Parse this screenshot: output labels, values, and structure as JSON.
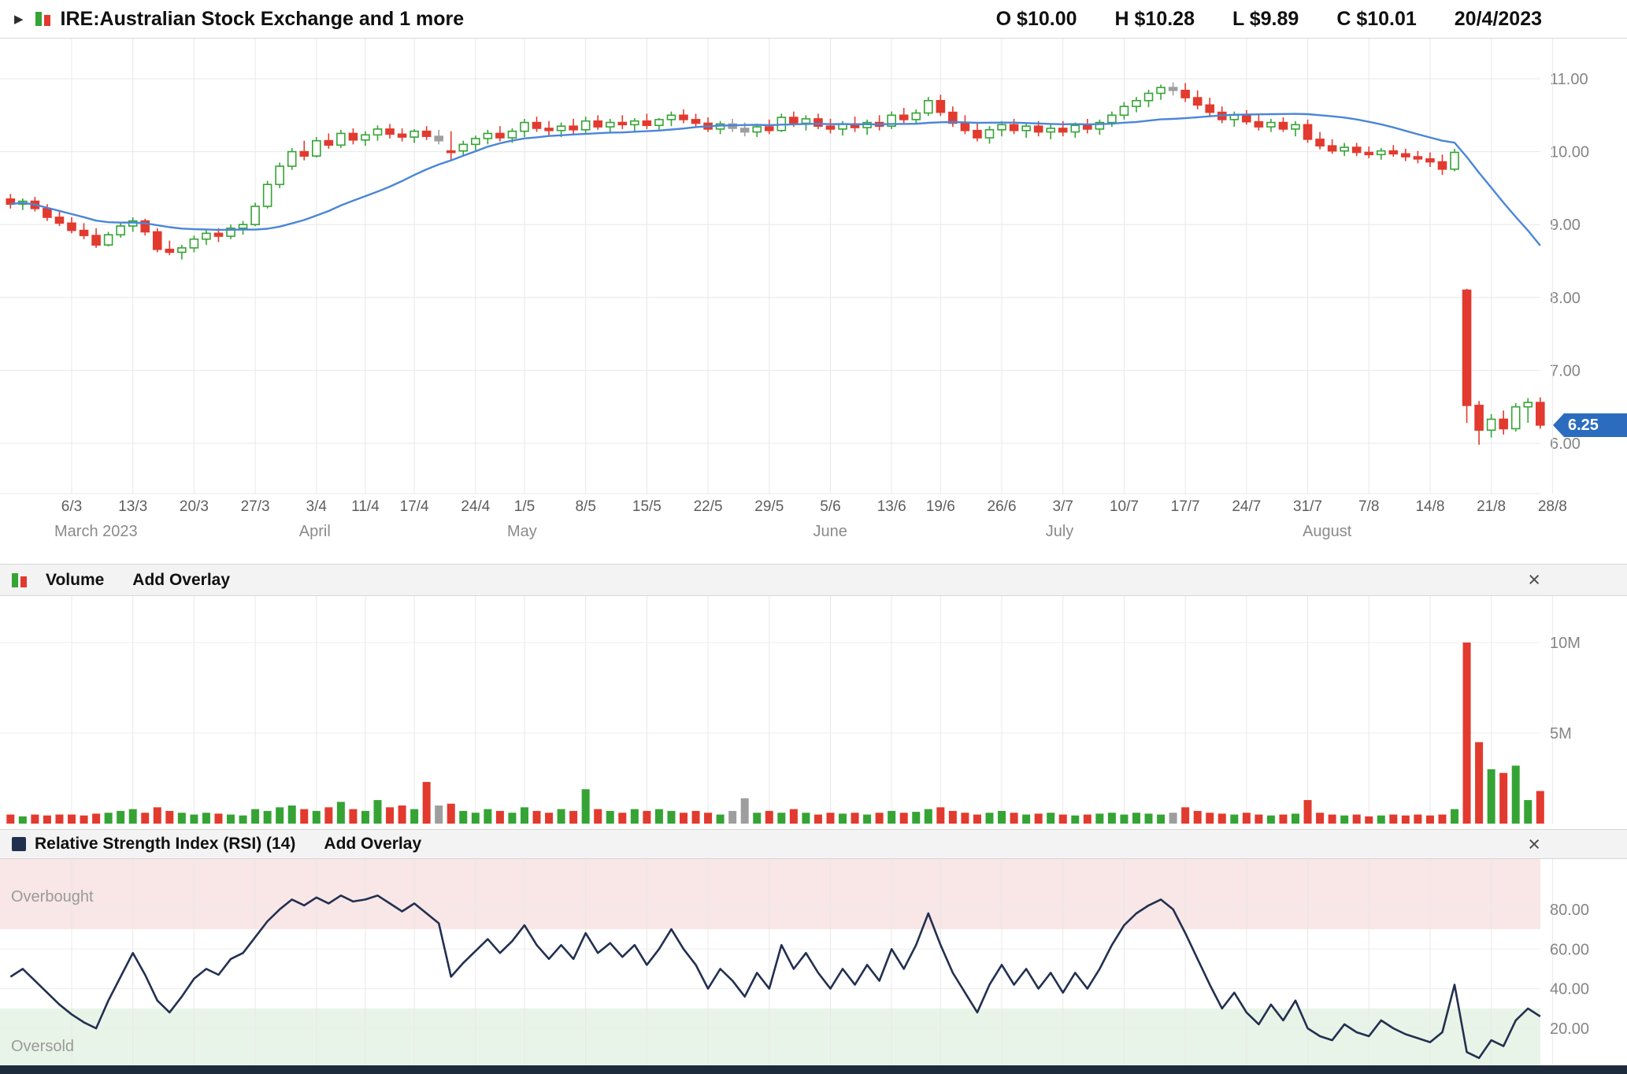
{
  "header": {
    "expand_icon": "▶",
    "title": "IRE:Australian Stock Exchange and 1 more",
    "ohlc": {
      "open": "O $10.00",
      "high": "H $10.28",
      "low": "L $9.89",
      "close": "C $10.01",
      "date": "20/4/2023"
    },
    "last_price_tag": "6.25"
  },
  "volume_panel": {
    "title": "Volume",
    "add_overlay": "Add Overlay",
    "close": "×"
  },
  "rsi_panel": {
    "title": "Relative Strength Index (RSI) (14)",
    "add_overlay": "Add Overlay",
    "close": "×",
    "overbought": "Overbought",
    "oversold": "Oversold"
  },
  "colors": {
    "up": "#35a435",
    "down": "#e23a2e",
    "neutral": "#9e9e9e",
    "ma_line": "#4a86d8",
    "rsi_line": "#223050",
    "tag": "#2b6cbf",
    "overbought_bg": "#f9e6e6",
    "oversold_bg": "#e8f4e7",
    "bottom_bar": "#1e2b3c"
  },
  "chart_data": {
    "type": "candlestick",
    "title": "IRE:Australian Stock Exchange and 1 more",
    "readout": {
      "open": 10.0,
      "high": 10.28,
      "low": 9.89,
      "close": 10.01,
      "date": "20/4/2023"
    },
    "last_price": 6.25,
    "moving_average": {
      "type": "sma",
      "window": 20
    },
    "price_axis": {
      "ticks": [
        11,
        10,
        9,
        8,
        7,
        6
      ],
      "labels": [
        "11.00",
        "10.00",
        "9.00",
        "8.00",
        "7.00",
        "6.00"
      ],
      "ylim": [
        5.3,
        11.4
      ]
    },
    "volume_axis": {
      "ticks": [
        10,
        5
      ],
      "labels": [
        "10M",
        "5M"
      ],
      "unit": "millions",
      "ylim": [
        0,
        12.5
      ]
    },
    "rsi_axis": {
      "ticks": [
        80,
        60,
        40,
        20
      ],
      "labels": [
        "80.00",
        "60.00",
        "40.00",
        "20.00"
      ],
      "overbought_level": 70,
      "oversold_level": 30,
      "ylim": [
        0,
        105
      ]
    },
    "x_ticks": [
      [
        "6/3",
        5
      ],
      [
        "13/3",
        10
      ],
      [
        "20/3",
        15
      ],
      [
        "27/3",
        20
      ],
      [
        "3/4",
        25
      ],
      [
        "11/4",
        29
      ],
      [
        "17/4",
        33
      ],
      [
        "24/4",
        38
      ],
      [
        "1/5",
        42
      ],
      [
        "8/5",
        47
      ],
      [
        "15/5",
        52
      ],
      [
        "22/5",
        57
      ],
      [
        "29/5",
        62
      ],
      [
        "5/6",
        67
      ],
      [
        "13/6",
        72
      ],
      [
        "19/6",
        76
      ],
      [
        "26/6",
        81
      ],
      [
        "3/7",
        86
      ],
      [
        "10/7",
        91
      ],
      [
        "17/7",
        96
      ],
      [
        "24/7",
        101
      ],
      [
        "31/7",
        106
      ],
      [
        "7/8",
        111
      ],
      [
        "14/8",
        116
      ],
      [
        "21/8",
        121
      ],
      [
        "28/8",
        126
      ]
    ],
    "months": [
      [
        "March 2023",
        5
      ],
      [
        "April",
        25
      ],
      [
        "May",
        42
      ],
      [
        "June",
        67
      ],
      [
        "July",
        86
      ],
      [
        "August",
        107
      ]
    ],
    "ohlc_columns": [
      "date",
      "open",
      "high",
      "low",
      "close",
      "direction",
      "volume_millions",
      "rsi14"
    ],
    "ohlc": [
      [
        "27/2",
        9.35,
        9.42,
        9.22,
        9.28,
        -1,
        0.5,
        46
      ],
      [
        "28/2",
        9.28,
        9.36,
        9.2,
        9.32,
        1,
        0.4,
        50
      ],
      [
        "1/3",
        9.32,
        9.38,
        9.18,
        9.22,
        -1,
        0.5,
        44
      ],
      [
        "2/3",
        9.22,
        9.28,
        9.05,
        9.1,
        -1,
        0.45,
        38
      ],
      [
        "3/3",
        9.1,
        9.18,
        8.98,
        9.02,
        -1,
        0.5,
        32
      ],
      [
        "6/3",
        9.02,
        9.1,
        8.88,
        8.92,
        -1,
        0.5,
        27
      ],
      [
        "7/3",
        8.92,
        9.02,
        8.8,
        8.85,
        -1,
        0.45,
        23
      ],
      [
        "8/3",
        8.85,
        8.95,
        8.68,
        8.72,
        -1,
        0.55,
        20
      ],
      [
        "9/3",
        8.72,
        8.9,
        8.7,
        8.86,
        1,
        0.6,
        34
      ],
      [
        "10/3",
        8.86,
        9.02,
        8.82,
        8.98,
        1,
        0.7,
        46
      ],
      [
        "13/3",
        8.98,
        9.1,
        8.9,
        9.05,
        1,
        0.8,
        58
      ],
      [
        "14/3",
        9.05,
        9.08,
        8.85,
        8.9,
        -1,
        0.6,
        47
      ],
      [
        "15/3",
        8.9,
        8.95,
        8.62,
        8.66,
        -1,
        0.9,
        34
      ],
      [
        "16/3",
        8.66,
        8.78,
        8.58,
        8.62,
        -1,
        0.7,
        28
      ],
      [
        "17/3",
        8.62,
        8.72,
        8.52,
        8.68,
        1,
        0.6,
        36
      ],
      [
        "20/3",
        8.68,
        8.85,
        8.62,
        8.8,
        1,
        0.5,
        45
      ],
      [
        "21/3",
        8.8,
        8.92,
        8.72,
        8.88,
        1,
        0.6,
        50
      ],
      [
        "22/3",
        8.88,
        8.95,
        8.76,
        8.84,
        -1,
        0.55,
        47
      ],
      [
        "23/3",
        8.84,
        9.0,
        8.8,
        8.95,
        1,
        0.5,
        55
      ],
      [
        "24/3",
        8.95,
        9.05,
        8.86,
        9.0,
        1,
        0.45,
        58
      ],
      [
        "27/3",
        9.0,
        9.3,
        8.98,
        9.25,
        1,
        0.8,
        66
      ],
      [
        "28/3",
        9.25,
        9.6,
        9.22,
        9.55,
        1,
        0.7,
        74
      ],
      [
        "29/3",
        9.55,
        9.85,
        9.5,
        9.8,
        1,
        0.9,
        80
      ],
      [
        "30/3",
        9.8,
        10.05,
        9.75,
        10.0,
        1,
        1.0,
        85
      ],
      [
        "31/3",
        10.0,
        10.15,
        9.88,
        9.94,
        -1,
        0.8,
        82
      ],
      [
        "3/4",
        9.94,
        10.2,
        9.92,
        10.15,
        1,
        0.7,
        86
      ],
      [
        "4/4",
        10.15,
        10.25,
        10.04,
        10.09,
        -1,
        0.9,
        83
      ],
      [
        "5/4",
        10.09,
        10.3,
        10.05,
        10.25,
        1,
        1.2,
        87
      ],
      [
        "6/4",
        10.25,
        10.32,
        10.1,
        10.16,
        -1,
        0.8,
        84
      ],
      [
        "11/4",
        10.16,
        10.28,
        10.08,
        10.23,
        1,
        0.7,
        85
      ],
      [
        "12/4",
        10.23,
        10.36,
        10.15,
        10.31,
        1,
        1.3,
        87
      ],
      [
        "13/4",
        10.31,
        10.38,
        10.18,
        10.24,
        -1,
        0.9,
        83
      ],
      [
        "14/4",
        10.24,
        10.32,
        10.14,
        10.2,
        -1,
        1.0,
        79
      ],
      [
        "17/4",
        10.2,
        10.31,
        10.12,
        10.28,
        1,
        0.8,
        83
      ],
      [
        "18/4",
        10.28,
        10.35,
        10.16,
        10.21,
        -1,
        2.3,
        78
      ],
      [
        "19/4",
        10.21,
        10.3,
        10.1,
        10.15,
        0,
        1.0,
        73
      ],
      [
        "20/4",
        10.0,
        10.28,
        9.89,
        10.01,
        -1,
        1.1,
        46
      ],
      [
        "21/4",
        10.01,
        10.15,
        9.95,
        10.1,
        1,
        0.7,
        53
      ],
      [
        "24/4",
        10.1,
        10.22,
        10.02,
        10.18,
        1,
        0.6,
        59
      ],
      [
        "26/4",
        10.18,
        10.3,
        10.1,
        10.25,
        1,
        0.8,
        65
      ],
      [
        "27/4",
        10.25,
        10.35,
        10.14,
        10.19,
        -1,
        0.7,
        58
      ],
      [
        "28/4",
        10.19,
        10.32,
        10.12,
        10.28,
        1,
        0.6,
        64
      ],
      [
        "1/5",
        10.28,
        10.45,
        10.2,
        10.4,
        1,
        0.9,
        72
      ],
      [
        "2/5",
        10.4,
        10.48,
        10.27,
        10.32,
        -1,
        0.7,
        62
      ],
      [
        "3/5",
        10.32,
        10.42,
        10.22,
        10.29,
        -1,
        0.6,
        55
      ],
      [
        "4/5",
        10.29,
        10.4,
        10.2,
        10.35,
        1,
        0.8,
        62
      ],
      [
        "5/5",
        10.35,
        10.45,
        10.24,
        10.3,
        -1,
        0.7,
        55
      ],
      [
        "8/5",
        10.3,
        10.48,
        10.25,
        10.42,
        1,
        1.9,
        68
      ],
      [
        "9/5",
        10.42,
        10.5,
        10.3,
        10.34,
        -1,
        0.8,
        58
      ],
      [
        "10/5",
        10.34,
        10.45,
        10.27,
        10.4,
        1,
        0.7,
        63
      ],
      [
        "11/5",
        10.4,
        10.5,
        10.31,
        10.37,
        -1,
        0.6,
        56
      ],
      [
        "12/5",
        10.37,
        10.46,
        10.28,
        10.42,
        1,
        0.8,
        62
      ],
      [
        "15/5",
        10.42,
        10.52,
        10.31,
        10.36,
        -1,
        0.7,
        52
      ],
      [
        "16/5",
        10.36,
        10.46,
        10.28,
        10.44,
        1,
        0.8,
        60
      ],
      [
        "17/5",
        10.44,
        10.55,
        10.35,
        10.5,
        1,
        0.7,
        70
      ],
      [
        "18/5",
        10.5,
        10.58,
        10.39,
        10.44,
        -1,
        0.6,
        60
      ],
      [
        "19/5",
        10.44,
        10.52,
        10.34,
        10.39,
        -1,
        0.7,
        52
      ],
      [
        "22/5",
        10.39,
        10.47,
        10.27,
        10.31,
        -1,
        0.6,
        40
      ],
      [
        "23/5",
        10.31,
        10.42,
        10.24,
        10.38,
        1,
        0.5,
        50
      ],
      [
        "24/5",
        10.38,
        10.45,
        10.27,
        10.32,
        0,
        0.7,
        44
      ],
      [
        "25/5",
        10.32,
        10.4,
        10.21,
        10.27,
        0,
        1.4,
        36
      ],
      [
        "26/5",
        10.27,
        10.38,
        10.2,
        10.34,
        1,
        0.6,
        48
      ],
      [
        "29/5",
        10.34,
        10.44,
        10.24,
        10.29,
        -1,
        0.7,
        40
      ],
      [
        "30/5",
        10.29,
        10.52,
        10.27,
        10.47,
        1,
        0.6,
        62
      ],
      [
        "31/5",
        10.47,
        10.55,
        10.34,
        10.39,
        -1,
        0.8,
        50
      ],
      [
        "1/6",
        10.39,
        10.5,
        10.29,
        10.45,
        1,
        0.6,
        58
      ],
      [
        "2/6",
        10.45,
        10.52,
        10.31,
        10.35,
        -1,
        0.5,
        48
      ],
      [
        "5/6",
        10.35,
        10.45,
        10.25,
        10.31,
        -1,
        0.6,
        40
      ],
      [
        "6/6",
        10.31,
        10.42,
        10.22,
        10.38,
        1,
        0.55,
        50
      ],
      [
        "7/6",
        10.38,
        10.48,
        10.27,
        10.33,
        -1,
        0.6,
        42
      ],
      [
        "8/6",
        10.33,
        10.44,
        10.23,
        10.4,
        1,
        0.5,
        52
      ],
      [
        "9/6",
        10.4,
        10.5,
        10.29,
        10.35,
        -1,
        0.6,
        44
      ],
      [
        "13/6",
        10.35,
        10.55,
        10.31,
        10.5,
        1,
        0.7,
        60
      ],
      [
        "14/6",
        10.5,
        10.6,
        10.39,
        10.44,
        -1,
        0.6,
        50
      ],
      [
        "15/6",
        10.44,
        10.58,
        10.37,
        10.53,
        1,
        0.65,
        62
      ],
      [
        "16/6",
        10.53,
        10.75,
        10.49,
        10.7,
        1,
        0.8,
        78
      ],
      [
        "19/6",
        10.7,
        10.78,
        10.49,
        10.54,
        -1,
        0.9,
        62
      ],
      [
        "20/6",
        10.54,
        10.62,
        10.34,
        10.39,
        -1,
        0.7,
        48
      ],
      [
        "21/6",
        10.39,
        10.5,
        10.24,
        10.29,
        -1,
        0.6,
        38
      ],
      [
        "22/6",
        10.29,
        10.4,
        10.14,
        10.19,
        -1,
        0.5,
        28
      ],
      [
        "23/6",
        10.19,
        10.35,
        10.11,
        10.3,
        1,
        0.6,
        42
      ],
      [
        "26/6",
        10.3,
        10.42,
        10.21,
        10.37,
        1,
        0.7,
        52
      ],
      [
        "27/6",
        10.37,
        10.45,
        10.24,
        10.29,
        -1,
        0.6,
        42
      ],
      [
        "28/6",
        10.29,
        10.4,
        10.19,
        10.35,
        1,
        0.5,
        50
      ],
      [
        "29/6",
        10.35,
        10.42,
        10.21,
        10.27,
        -1,
        0.55,
        40
      ],
      [
        "30/6",
        10.27,
        10.38,
        10.17,
        10.32,
        1,
        0.6,
        48
      ],
      [
        "3/7",
        10.32,
        10.42,
        10.21,
        10.27,
        -1,
        0.5,
        38
      ],
      [
        "4/7",
        10.27,
        10.4,
        10.19,
        10.36,
        1,
        0.45,
        48
      ],
      [
        "5/7",
        10.36,
        10.45,
        10.25,
        10.31,
        -1,
        0.5,
        40
      ],
      [
        "6/7",
        10.31,
        10.44,
        10.23,
        10.4,
        1,
        0.55,
        50
      ],
      [
        "7/7",
        10.4,
        10.55,
        10.34,
        10.5,
        1,
        0.6,
        62
      ],
      [
        "10/7",
        10.5,
        10.68,
        10.44,
        10.62,
        1,
        0.5,
        72
      ],
      [
        "11/7",
        10.62,
        10.75,
        10.54,
        10.7,
        1,
        0.6,
        78
      ],
      [
        "12/7",
        10.7,
        10.85,
        10.61,
        10.8,
        1,
        0.55,
        82
      ],
      [
        "13/7",
        10.8,
        10.92,
        10.71,
        10.88,
        1,
        0.5,
        85
      ],
      [
        "14/7",
        10.88,
        10.95,
        10.77,
        10.84,
        0,
        0.6,
        80
      ],
      [
        "17/7",
        10.84,
        10.94,
        10.68,
        10.74,
        -1,
        0.9,
        68
      ],
      [
        "18/7",
        10.74,
        10.84,
        10.58,
        10.64,
        -1,
        0.7,
        55
      ],
      [
        "19/7",
        10.64,
        10.74,
        10.48,
        10.54,
        -1,
        0.6,
        42
      ],
      [
        "20/7",
        10.54,
        10.62,
        10.39,
        10.44,
        -1,
        0.55,
        30
      ],
      [
        "21/7",
        10.44,
        10.55,
        10.34,
        10.5,
        1,
        0.5,
        38
      ],
      [
        "24/7",
        10.5,
        10.57,
        10.37,
        10.41,
        -1,
        0.6,
        28
      ],
      [
        "25/7",
        10.41,
        10.5,
        10.29,
        10.34,
        -1,
        0.5,
        22
      ],
      [
        "26/7",
        10.34,
        10.45,
        10.27,
        10.4,
        1,
        0.45,
        32
      ],
      [
        "27/7",
        10.4,
        10.47,
        10.27,
        10.31,
        -1,
        0.5,
        24
      ],
      [
        "28/7",
        10.31,
        10.42,
        10.21,
        10.37,
        1,
        0.55,
        34
      ],
      [
        "31/7",
        10.37,
        10.44,
        10.12,
        10.17,
        -1,
        1.3,
        20
      ],
      [
        "1/8",
        10.17,
        10.27,
        10.03,
        10.08,
        -1,
        0.6,
        16
      ],
      [
        "2/8",
        10.08,
        10.17,
        9.97,
        10.01,
        -1,
        0.5,
        14
      ],
      [
        "3/8",
        10.01,
        10.12,
        9.94,
        10.06,
        1,
        0.45,
        22
      ],
      [
        "4/8",
        10.06,
        10.12,
        9.94,
        9.99,
        -1,
        0.5,
        18
      ],
      [
        "7/8",
        9.99,
        10.07,
        9.91,
        9.96,
        -1,
        0.4,
        16
      ],
      [
        "8/8",
        9.96,
        10.05,
        9.89,
        10.01,
        1,
        0.45,
        24
      ],
      [
        "9/8",
        10.01,
        10.09,
        9.93,
        9.97,
        -1,
        0.5,
        20
      ],
      [
        "10/8",
        9.97,
        10.04,
        9.87,
        9.93,
        -1,
        0.45,
        17
      ],
      [
        "11/8",
        9.93,
        10.01,
        9.84,
        9.9,
        -1,
        0.5,
        15
      ],
      [
        "14/8",
        9.9,
        9.99,
        9.79,
        9.86,
        -1,
        0.45,
        13
      ],
      [
        "15/8",
        9.86,
        9.96,
        9.68,
        9.76,
        -1,
        0.5,
        18
      ],
      [
        "16/8",
        9.76,
        10.04,
        9.73,
        9.99,
        1,
        0.8,
        42
      ],
      [
        "17/8",
        8.1,
        8.12,
        6.28,
        6.52,
        -1,
        10.0,
        8
      ],
      [
        "18/8",
        6.52,
        6.58,
        5.98,
        6.18,
        -1,
        4.5,
        5
      ],
      [
        "21/8",
        6.18,
        6.4,
        6.08,
        6.33,
        1,
        3.0,
        14
      ],
      [
        "22/8",
        6.33,
        6.45,
        6.12,
        6.2,
        -1,
        2.8,
        11
      ],
      [
        "23/8",
        6.2,
        6.55,
        6.16,
        6.5,
        1,
        3.2,
        24
      ],
      [
        "24/8",
        6.5,
        6.62,
        6.28,
        6.56,
        1,
        1.3,
        30
      ],
      [
        "25/8",
        6.56,
        6.63,
        6.2,
        6.25,
        -1,
        1.8,
        26
      ]
    ]
  }
}
